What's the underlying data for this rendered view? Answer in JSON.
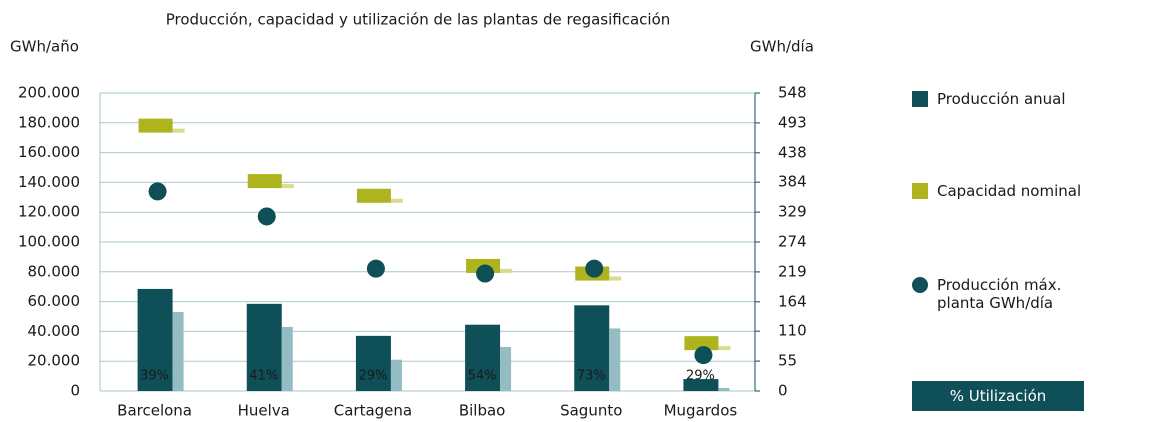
{
  "chart_data": {
    "type": "bar",
    "title": "Producción, capacidad y utilización de las plantas de regasificación",
    "ylabel": "GWh/año",
    "y2label": "GWh/día",
    "categories": [
      "Barcelona",
      "Huelva",
      "Cartagena",
      "Bilbao",
      "Sagunto",
      "Mugardos"
    ],
    "ylim": [
      0,
      200000
    ],
    "yticks": [
      0,
      {
        "value": 20000,
        "label": "20.000"
      },
      {
        "value": 40000,
        "label": "40.000"
      },
      {
        "value": 60000,
        "label": "60.000"
      },
      {
        "value": 80000,
        "label": "80.000"
      },
      {
        "value": 100000,
        "label": "100.000"
      },
      {
        "value": 120000,
        "label": "120.000"
      },
      {
        "value": 140000,
        "label": "140.000"
      },
      {
        "value": 160000,
        "label": "160.000"
      },
      {
        "value": 180000,
        "label": "180.000"
      },
      {
        "value": 200000,
        "label": "200.000"
      }
    ],
    "y2lim": [
      0,
      548
    ],
    "y2ticks": [
      0,
      55,
      110,
      164,
      219,
      274,
      329,
      384,
      438,
      493,
      548
    ],
    "y2color": "#a9ae1f",
    "grid": true,
    "series": [
      {
        "name": "Producción anual",
        "type": "bar",
        "color": "#0e4f58",
        "values": [
          68500,
          58500,
          37000,
          44500,
          57500,
          8000
        ]
      },
      {
        "type": "bar",
        "color": "#93bdc2",
        "values": [
          53000,
          43000,
          21000,
          29500,
          42000,
          2000
        ]
      },
      {
        "name": "Capacidad nominal",
        "type": "marker",
        "axis": "y2",
        "color": "#aeb41d",
        "values": [
          488,
          386,
          359,
          230,
          216,
          88
        ]
      },
      {
        "name": "Producción máx. planta GWh/día",
        "type": "scatter",
        "axis": "y2",
        "color": "#0e4f58",
        "values": [
          367,
          321,
          225,
          216,
          225,
          66
        ]
      },
      {
        "name": "% Utilización",
        "type": "label",
        "color": "#0e4f58",
        "values": [
          39,
          41,
          29,
          54,
          73,
          29
        ],
        "value_labels": [
          "39%",
          "41%",
          "29%",
          "54%",
          "73%",
          "29%"
        ]
      }
    ]
  }
}
